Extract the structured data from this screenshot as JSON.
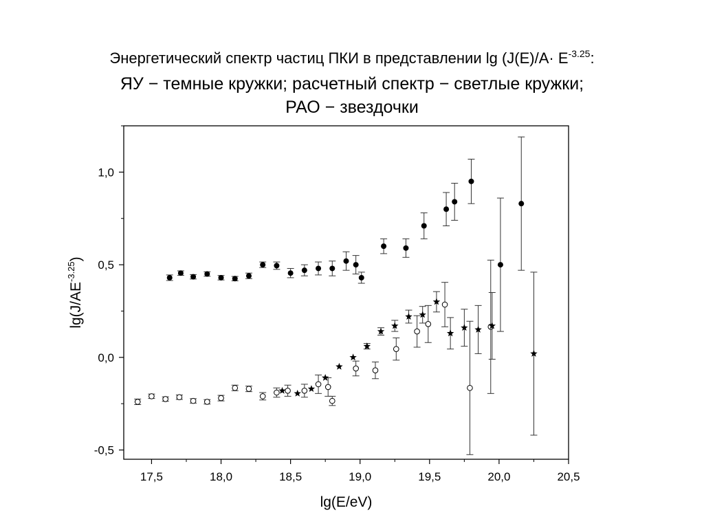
{
  "title": {
    "line1_prefix": "Энергетический спектр частиц ПКИ в представлении lg (J(E)/A· E",
    "line1_sup": "-3.25",
    "line1_suffix": ":",
    "line2": "ЯУ − темные кружки; расчетный спектр − светлые кружки;",
    "line3": "РАО − звездочки"
  },
  "chart_data": {
    "type": "scatter",
    "xlabel": "lg(E/eV)",
    "ylabel_base": "lg(J/AE",
    "ylabel_sup": "-3.25",
    "ylabel_close": ")",
    "xlim": [
      17.3,
      20.5
    ],
    "ylim": [
      -0.55,
      1.25
    ],
    "xticks": [
      17.5,
      18.0,
      18.5,
      19.0,
      19.5,
      20.0,
      20.5
    ],
    "xtick_labels": [
      "17,5",
      "18,0",
      "18,5",
      "19,0",
      "19,5",
      "20,0",
      "20,5"
    ],
    "yticks": [
      -0.5,
      0.0,
      0.5,
      1.0
    ],
    "ytick_labels": [
      "-0,5",
      "0,0",
      "0,5",
      "1,0"
    ],
    "grid": false,
    "legend": "none",
    "series": [
      {
        "marker": "filled-circle",
        "points": [
          {
            "x": 17.63,
            "y": 0.43,
            "err": 0.015
          },
          {
            "x": 17.71,
            "y": 0.455,
            "err": 0.012
          },
          {
            "x": 17.8,
            "y": 0.435,
            "err": 0.012
          },
          {
            "x": 17.9,
            "y": 0.45,
            "err": 0.012
          },
          {
            "x": 18.0,
            "y": 0.43,
            "err": 0.012
          },
          {
            "x": 18.1,
            "y": 0.425,
            "err": 0.012
          },
          {
            "x": 18.2,
            "y": 0.44,
            "err": 0.015
          },
          {
            "x": 18.3,
            "y": 0.5,
            "err": 0.015
          },
          {
            "x": 18.4,
            "y": 0.495,
            "err": 0.02
          },
          {
            "x": 18.5,
            "y": 0.455,
            "err": 0.025
          },
          {
            "x": 18.6,
            "y": 0.47,
            "err": 0.03
          },
          {
            "x": 18.7,
            "y": 0.48,
            "err": 0.035
          },
          {
            "x": 18.8,
            "y": 0.48,
            "err": 0.04
          },
          {
            "x": 18.9,
            "y": 0.52,
            "err": 0.05
          },
          {
            "x": 18.97,
            "y": 0.5,
            "err": 0.05
          },
          {
            "x": 19.01,
            "y": 0.43,
            "err": 0.03
          },
          {
            "x": 19.17,
            "y": 0.6,
            "err": 0.04
          },
          {
            "x": 19.33,
            "y": 0.59,
            "err": 0.05
          },
          {
            "x": 19.46,
            "y": 0.71,
            "err": 0.07
          },
          {
            "x": 19.62,
            "y": 0.8,
            "err": 0.09
          },
          {
            "x": 19.68,
            "y": 0.84,
            "err": 0.1
          },
          {
            "x": 19.8,
            "y": 0.95,
            "err": 0.12
          },
          {
            "x": 20.01,
            "y": 0.5,
            "err": 0.36
          },
          {
            "x": 20.16,
            "y": 0.83,
            "err": 0.36
          }
        ]
      },
      {
        "marker": "open-circle",
        "points": [
          {
            "x": 17.4,
            "y": -0.24,
            "err": 0.015
          },
          {
            "x": 17.5,
            "y": -0.21,
            "err": 0.012
          },
          {
            "x": 17.6,
            "y": -0.225,
            "err": 0.012
          },
          {
            "x": 17.7,
            "y": -0.215,
            "err": 0.012
          },
          {
            "x": 17.8,
            "y": -0.235,
            "err": 0.012
          },
          {
            "x": 17.9,
            "y": -0.24,
            "err": 0.012
          },
          {
            "x": 18.0,
            "y": -0.22,
            "err": 0.015
          },
          {
            "x": 18.1,
            "y": -0.165,
            "err": 0.015
          },
          {
            "x": 18.2,
            "y": -0.17,
            "err": 0.015
          },
          {
            "x": 18.3,
            "y": -0.21,
            "err": 0.02
          },
          {
            "x": 18.4,
            "y": -0.19,
            "err": 0.025
          },
          {
            "x": 18.48,
            "y": -0.18,
            "err": 0.03
          },
          {
            "x": 18.6,
            "y": -0.18,
            "err": 0.035
          },
          {
            "x": 18.7,
            "y": -0.145,
            "err": 0.05
          },
          {
            "x": 18.77,
            "y": -0.16,
            "err": 0.05
          },
          {
            "x": 18.8,
            "y": -0.235,
            "err": 0.025
          },
          {
            "x": 18.97,
            "y": -0.06,
            "err": 0.04
          },
          {
            "x": 19.11,
            "y": -0.07,
            "err": 0.045
          },
          {
            "x": 19.26,
            "y": 0.045,
            "err": 0.06
          },
          {
            "x": 19.41,
            "y": 0.14,
            "err": 0.085
          },
          {
            "x": 19.49,
            "y": 0.18,
            "err": 0.1
          },
          {
            "x": 19.61,
            "y": 0.285,
            "err": 0.12
          },
          {
            "x": 19.79,
            "y": -0.165,
            "err": 0.36
          },
          {
            "x": 19.94,
            "y": 0.165,
            "err": 0.36
          }
        ]
      },
      {
        "marker": "star",
        "points": [
          {
            "x": 18.44,
            "y": -0.18,
            "err": 0
          },
          {
            "x": 18.55,
            "y": -0.195,
            "err": 0
          },
          {
            "x": 18.65,
            "y": -0.17,
            "err": 0
          },
          {
            "x": 18.75,
            "y": -0.11,
            "err": 0
          },
          {
            "x": 18.85,
            "y": -0.05,
            "err": 0
          },
          {
            "x": 18.95,
            "y": 0.0,
            "err": 0
          },
          {
            "x": 19.05,
            "y": 0.06,
            "err": 0.015
          },
          {
            "x": 19.15,
            "y": 0.14,
            "err": 0.02
          },
          {
            "x": 19.25,
            "y": 0.17,
            "err": 0.03
          },
          {
            "x": 19.35,
            "y": 0.22,
            "err": 0.035
          },
          {
            "x": 19.45,
            "y": 0.23,
            "err": 0.045
          },
          {
            "x": 19.55,
            "y": 0.3,
            "err": 0.055
          },
          {
            "x": 19.65,
            "y": 0.13,
            "err": 0.085
          },
          {
            "x": 19.75,
            "y": 0.16,
            "err": 0.1
          },
          {
            "x": 19.85,
            "y": 0.15,
            "err": 0.13
          },
          {
            "x": 19.95,
            "y": 0.17,
            "err": 0.18
          },
          {
            "x": 20.25,
            "y": 0.02,
            "err": 0.44
          }
        ]
      }
    ]
  }
}
